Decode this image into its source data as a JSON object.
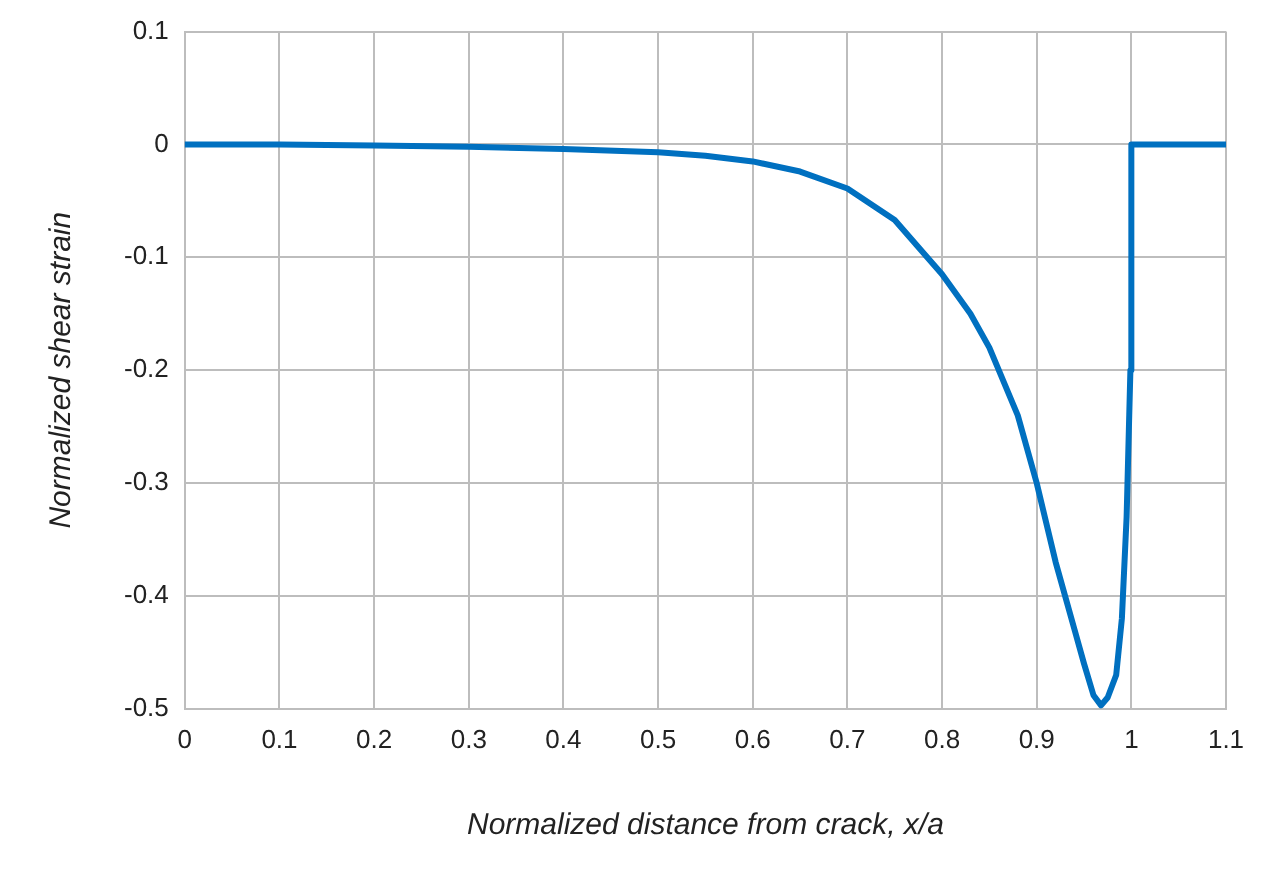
{
  "chart_data": {
    "type": "line",
    "xlabel": "Normalized distance from crack, x/a",
    "ylabel": "Normalized shear strain",
    "x": [
      0,
      0.1,
      0.2,
      0.3,
      0.4,
      0.5,
      0.55,
      0.6,
      0.65,
      0.7,
      0.75,
      0.8,
      0.83,
      0.85,
      0.88,
      0.9,
      0.92,
      0.94,
      0.95,
      0.96,
      0.968,
      0.975,
      0.984,
      0.99,
      0.995,
      0.999,
      1.0,
      1.05,
      1.1
    ],
    "series": [
      {
        "color": "#0070c0",
        "values": [
          0,
          0,
          -0.001,
          -0.002,
          -0.004,
          -0.007,
          -0.01,
          -0.015,
          -0.024,
          -0.039,
          -0.067,
          -0.115,
          -0.15,
          -0.18,
          -0.24,
          -0.3,
          -0.37,
          -0.43,
          -0.46,
          -0.488,
          -0.497,
          -0.49,
          -0.47,
          -0.42,
          -0.33,
          -0.2,
          0,
          0,
          0
        ]
      }
    ],
    "xlim": [
      0,
      1.1
    ],
    "xticks": [
      0,
      0.1,
      0.2,
      0.3,
      0.4,
      0.5,
      0.6,
      0.7,
      0.8,
      0.9,
      1,
      1.1
    ],
    "ylim": [
      -0.5,
      0.1
    ],
    "yticks": [
      -0.5,
      -0.4,
      -0.3,
      -0.2,
      -0.1,
      0,
      0.1
    ],
    "grid": true,
    "legend": false,
    "marker": "none",
    "line_style": "solid"
  }
}
